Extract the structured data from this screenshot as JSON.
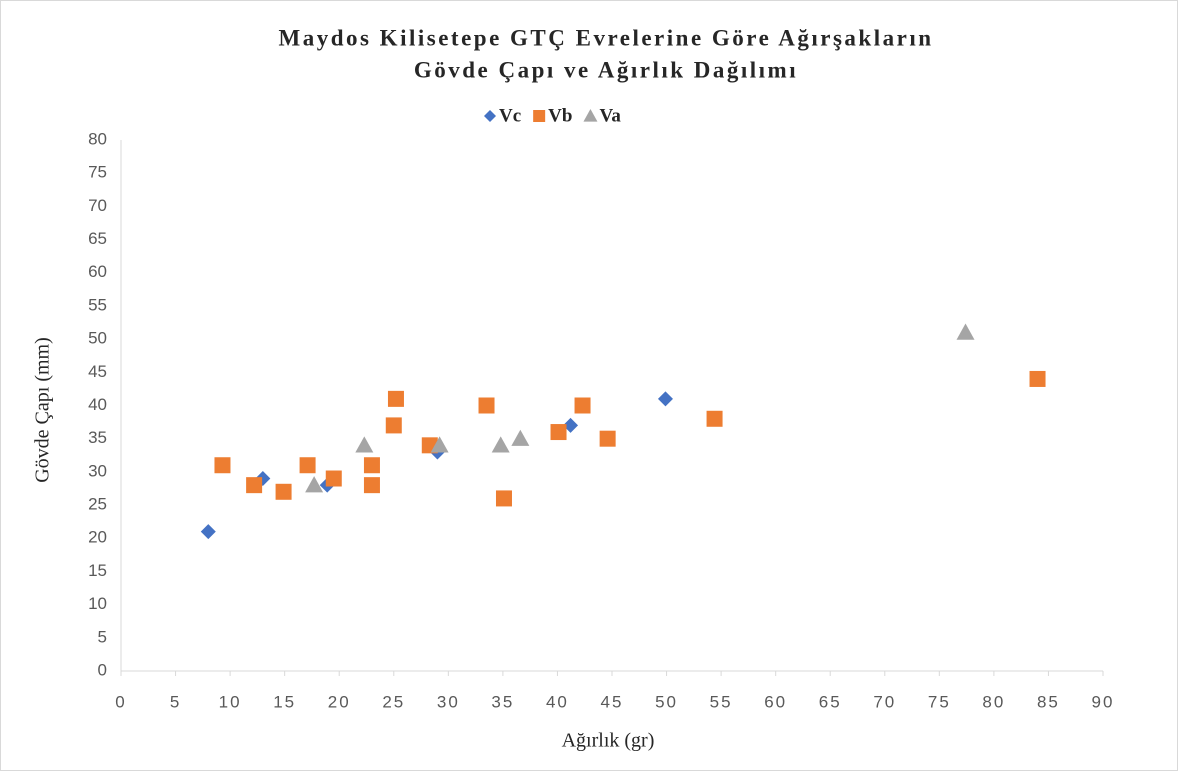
{
  "chart_data": {
    "type": "scatter",
    "title": [
      "Maydos Kilisetepe GTÇ Evrelerine Göre Ağırşakların",
      "Gövde Çapı ve Ağırlık Dağılımı"
    ],
    "x_label": "Ağırlık (gr)",
    "y_label": "Gövde Çapı (mm)",
    "legend": "top",
    "grid": false,
    "xlim": [
      0,
      90
    ],
    "xticks": [
      0,
      5,
      10,
      15,
      20,
      25,
      30,
      35,
      40,
      45,
      50,
      55,
      60,
      65,
      70,
      75,
      80,
      85,
      90
    ],
    "ylim": [
      0,
      80
    ],
    "yticks": [
      0,
      5,
      10,
      15,
      20,
      25,
      30,
      35,
      40,
      45,
      50,
      55,
      60,
      65,
      70,
      75,
      80
    ],
    "series": [
      {
        "name": "Vc",
        "color": "#4472c4",
        "marker": "diamond",
        "x": [
          8,
          13,
          18.9,
          29,
          41.2,
          49.9
        ],
        "values": [
          21,
          29,
          28,
          33,
          37,
          41
        ]
      },
      {
        "name": "Vb",
        "color": "#ed7d31",
        "marker": "square",
        "x": [
          9.3,
          12.2,
          14.9,
          17.1,
          19.5,
          23,
          23,
          25,
          25.2,
          28.3,
          33.5,
          35.1,
          40.1,
          42.3,
          44.6,
          54.4,
          84
        ],
        "values": [
          31,
          28,
          27,
          31,
          29,
          31,
          28,
          37,
          41,
          34,
          40,
          26,
          36,
          40,
          35,
          38,
          44
        ]
      },
      {
        "name": "Va",
        "color": "#a5a5a5",
        "marker": "triangle",
        "x": [
          17.7,
          22.3,
          29.2,
          34.8,
          36.6,
          77.4
        ],
        "values": [
          28,
          34,
          34,
          34,
          35,
          51
        ]
      }
    ]
  }
}
